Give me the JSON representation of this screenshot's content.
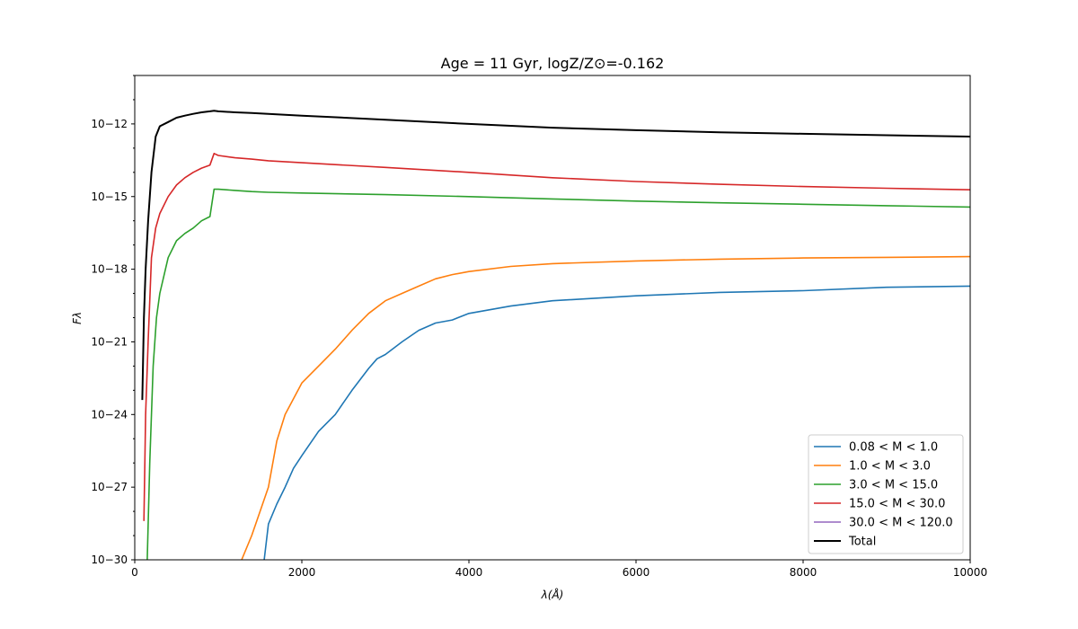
{
  "chart_data": {
    "type": "line",
    "title": "Age = 11 Gyr, logZ/Z⊙=-0.162",
    "xlabel": "λ(Å)",
    "ylabel": "Fλ",
    "xlim": [
      0,
      10000
    ],
    "ylim": [
      1e-30,
      1e-10
    ],
    "yscale": "log",
    "grid": false,
    "legend_position": "lower-right",
    "x_ticks": [
      {
        "value": 0,
        "label": "0"
      },
      {
        "value": 2000,
        "label": "2000"
      },
      {
        "value": 4000,
        "label": "4000"
      },
      {
        "value": 6000,
        "label": "6000"
      },
      {
        "value": 8000,
        "label": "8000"
      },
      {
        "value": 10000,
        "label": "10000"
      }
    ],
    "y_ticks": [
      {
        "exp": -30,
        "label": "10−30"
      },
      {
        "exp": -27,
        "label": "10−27"
      },
      {
        "exp": -24,
        "label": "10−24"
      },
      {
        "exp": -21,
        "label": "10−21"
      },
      {
        "exp": -18,
        "label": "10−18"
      },
      {
        "exp": -15,
        "label": "10−15"
      },
      {
        "exp": -12,
        "label": "10−12"
      }
    ],
    "series": [
      {
        "name": "0.08 < M < 1.0",
        "color": "#1f77b4",
        "x": [
          1550,
          1600,
          1700,
          1800,
          1900,
          2000,
          2200,
          2400,
          2600,
          2800,
          2900,
          3000,
          3200,
          3400,
          3600,
          3800,
          4000,
          4500,
          5000,
          6000,
          7000,
          8000,
          9000,
          10000
        ],
        "y": [
          1e-30,
          3e-29,
          2e-28,
          1e-27,
          6e-27,
          2e-26,
          2e-25,
          1e-24,
          1e-23,
          8e-23,
          2e-22,
          3e-22,
          1e-21,
          3e-21,
          6e-21,
          8e-21,
          1.5e-20,
          3e-20,
          5e-20,
          8e-20,
          1.1e-19,
          1.3e-19,
          1.8e-19,
          2e-19
        ]
      },
      {
        "name": "1.0 < M < 3.0",
        "color": "#ff7f0e",
        "x": [
          1280,
          1400,
          1500,
          1600,
          1700,
          1800,
          2000,
          2200,
          2400,
          2600,
          2800,
          3000,
          3200,
          3400,
          3600,
          3800,
          4000,
          4500,
          5000,
          6000,
          7000,
          8000,
          9000,
          10000
        ],
        "y": [
          1e-30,
          1e-29,
          1e-28,
          1e-27,
          8e-26,
          1e-24,
          2e-23,
          1e-22,
          5e-22,
          3e-21,
          1.5e-20,
          5e-20,
          1e-19,
          2e-19,
          4e-19,
          6e-19,
          8e-19,
          1.3e-18,
          1.7e-18,
          2.2e-18,
          2.6e-18,
          2.9e-18,
          3.1e-18,
          3.3e-18
        ]
      },
      {
        "name": "3.0 < M < 15.0",
        "color": "#2ca02c",
        "x": [
          150,
          180,
          220,
          260,
          300,
          400,
          500,
          600,
          700,
          800,
          900,
          950,
          1000,
          1200,
          1400,
          1600,
          2000,
          3000,
          4000,
          5000,
          6000,
          7000,
          8000,
          9000,
          10000
        ],
        "y": [
          1e-30,
          1e-26,
          1e-22,
          1e-20,
          1e-19,
          3e-18,
          1.5e-17,
          3e-17,
          5e-17,
          1e-16,
          1.5e-16,
          2e-15,
          2e-15,
          1.8e-15,
          1.6e-15,
          1.5e-15,
          1.4e-15,
          1.2e-15,
          1e-15,
          8e-16,
          6.5e-16,
          5.5e-16,
          4.8e-16,
          4.2e-16,
          3.7e-16
        ]
      },
      {
        "name": "15.0 < M < 30.0",
        "color": "#d62728",
        "x": [
          110,
          130,
          160,
          200,
          250,
          300,
          400,
          500,
          600,
          700,
          800,
          900,
          950,
          1000,
          1200,
          1400,
          1600,
          2000,
          3000,
          4000,
          5000,
          6000,
          7000,
          8000,
          9000,
          10000
        ],
        "y": [
          4e-29,
          1e-24,
          1e-21,
          3e-18,
          5e-17,
          2e-16,
          1e-15,
          3e-15,
          6e-15,
          1e-14,
          1.5e-14,
          2e-14,
          6e-14,
          5e-14,
          4e-14,
          3.5e-14,
          3e-14,
          2.5e-14,
          1.6e-14,
          1e-14,
          6e-15,
          4.2e-15,
          3.2e-15,
          2.6e-15,
          2.2e-15,
          1.9e-15
        ]
      },
      {
        "name": "30.0 < M < 120.0",
        "color": "#9467bd",
        "x": [],
        "y": []
      },
      {
        "name": "Total",
        "color": "#000000",
        "x": [
          90,
          110,
          130,
          160,
          200,
          250,
          300,
          400,
          500,
          600,
          700,
          800,
          900,
          950,
          1000,
          1200,
          1400,
          1600,
          2000,
          3000,
          4000,
          5000,
          6000,
          7000,
          8000,
          9000,
          10000
        ],
        "y": [
          4e-24,
          1e-20,
          1e-18,
          1e-16,
          1e-14,
          3e-13,
          8e-13,
          1.2e-12,
          1.8e-12,
          2.2e-12,
          2.6e-12,
          3e-12,
          3.3e-12,
          3.5e-12,
          3.3e-12,
          3e-12,
          2.8e-12,
          2.6e-12,
          2.2e-12,
          1.5e-12,
          1e-12,
          7e-13,
          5.5e-13,
          4.5e-13,
          3.9e-13,
          3.4e-13,
          3e-13
        ]
      }
    ]
  }
}
